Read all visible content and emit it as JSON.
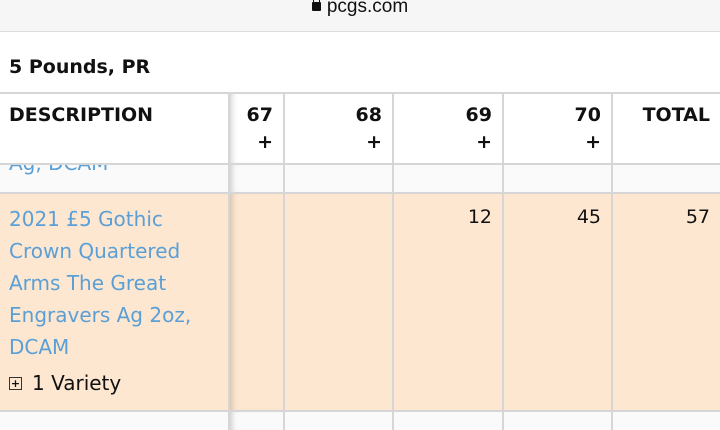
{
  "browser": {
    "url": "pcgs.com",
    "lock_icon": "lock-icon"
  },
  "page_title": "5 Pounds, PR",
  "table": {
    "headers": [
      {
        "label": "DESCRIPTION"
      },
      {
        "label": "67",
        "plus": "+"
      },
      {
        "label": "68",
        "plus": "+"
      },
      {
        "label": "69",
        "plus": "+"
      },
      {
        "label": "70",
        "plus": "+"
      },
      {
        "label": "TOTAL"
      }
    ],
    "rows": [
      {
        "description": "Ag, DCAM",
        "values": [
          "",
          "",
          "",
          "",
          ""
        ]
      },
      {
        "description": "2021 £5 Gothic Crown Quartered Arms The Great Engravers Ag 2oz, DCAM",
        "values": [
          "",
          "",
          "12",
          "45",
          "57"
        ],
        "variety": "1 Variety",
        "variety_icon": "+",
        "highlight": "#fde7d1"
      }
    ]
  }
}
